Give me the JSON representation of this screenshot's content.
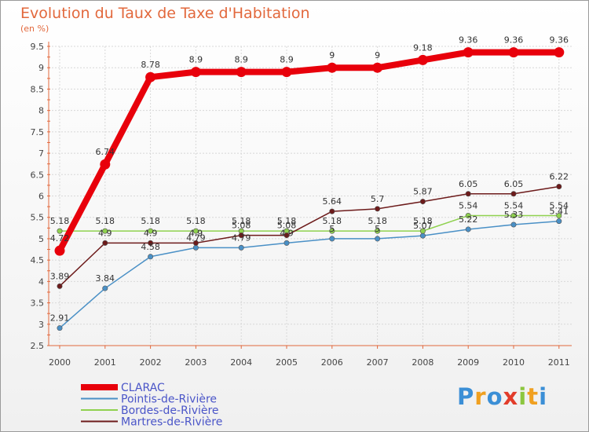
{
  "chart_data": {
    "type": "line",
    "title": "Evolution du Taux de Taxe d'Habitation",
    "unit": "(en %)",
    "categories": [
      "2000",
      "2001",
      "2002",
      "2003",
      "2004",
      "2005",
      "2006",
      "2007",
      "2008",
      "2009",
      "2010",
      "2011"
    ],
    "ylim": [
      2.5,
      9.5
    ],
    "yticks": [
      "2.5",
      "3",
      "3.5",
      "4",
      "4.5",
      "5",
      "5.5",
      "6",
      "6.5",
      "7",
      "7.5",
      "8",
      "8.5",
      "9",
      "9.5"
    ],
    "grid": true,
    "legend_position": "bottom-left",
    "series": [
      {
        "name": "CLARAC",
        "color": "#e8000b",
        "values": [
          4.72,
          6.74,
          8.78,
          8.9,
          8.9,
          8.9,
          9,
          9,
          9.18,
          9.36,
          9.36,
          9.36
        ],
        "labels": [
          "4.72",
          "6.74",
          "8.78",
          "8.9",
          "8.9",
          "8.9",
          "9",
          "9",
          "9.18",
          "9.36",
          "9.36",
          "9.36"
        ]
      },
      {
        "name": "Pointis-de-Rivière",
        "color": "#4a90c6",
        "values": [
          2.91,
          3.84,
          4.58,
          4.79,
          4.79,
          4.9,
          5,
          5,
          5.07,
          5.22,
          5.33,
          5.41
        ],
        "labels": [
          "2.91",
          "3.84",
          "4.58",
          "4.79",
          "4.79",
          "4.9",
          "5",
          "5",
          "5.07",
          "5.22",
          "5.33",
          "5.41"
        ]
      },
      {
        "name": "Bordes-de-Rivière",
        "color": "#8fd14f",
        "values": [
          5.18,
          5.18,
          5.18,
          5.18,
          5.18,
          5.18,
          5.18,
          5.18,
          5.18,
          5.54,
          5.54,
          5.54
        ],
        "labels": [
          "5.18",
          "5.18",
          "5.18",
          "5.18",
          "5.18",
          "5.18",
          "5.18",
          "5.18",
          "5.18",
          "5.54",
          "5.54",
          "5.54"
        ]
      },
      {
        "name": "Martres-de-Rivière",
        "color": "#6d1b1b",
        "values": [
          3.89,
          4.9,
          4.9,
          4.9,
          5.08,
          5.08,
          5.64,
          5.7,
          5.87,
          6.05,
          6.05,
          6.22
        ],
        "labels": [
          "3.89",
          "4.9",
          "4.9",
          "4.9",
          "5.08",
          "5.08",
          "5.64",
          "5.7",
          "5.87",
          "6.05",
          "6.05",
          "6.22"
        ]
      }
    ]
  },
  "logo": {
    "letters": [
      {
        "ch": "P",
        "color": "#3b8fd6"
      },
      {
        "ch": "r",
        "color": "#f0a020"
      },
      {
        "ch": "o",
        "color": "#3b8fd6"
      },
      {
        "ch": "x",
        "color": "#e23c2a"
      },
      {
        "ch": "i",
        "color": "#8cc63f"
      },
      {
        "ch": "t",
        "color": "#f0a020"
      },
      {
        "ch": "i",
        "color": "#3b8fd6"
      }
    ]
  }
}
